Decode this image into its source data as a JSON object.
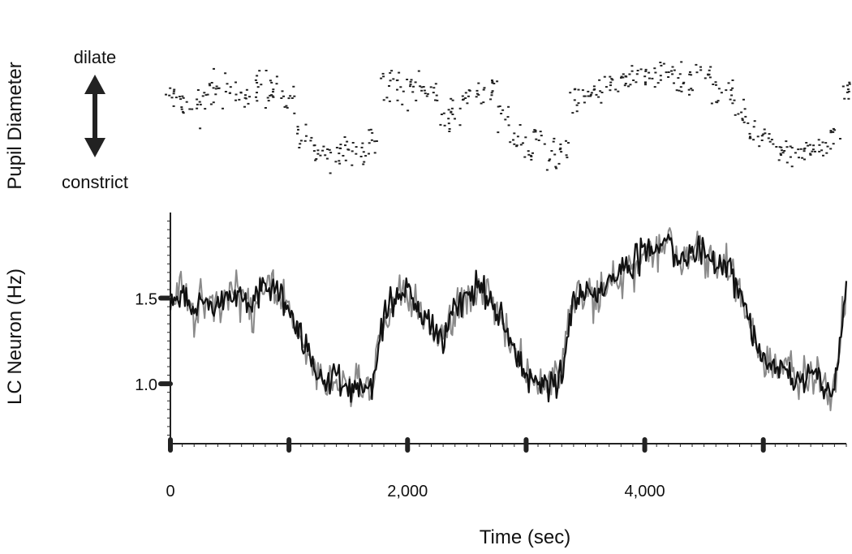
{
  "chart_data": [
    {
      "type": "scatter",
      "ylabel": "Pupil Diameter",
      "y_top_label": "dilate",
      "y_bottom_label": "constrict",
      "xlim": [
        0,
        5700
      ],
      "ylim": [
        0,
        1
      ],
      "colors": {
        "points": "#222222",
        "arrow": "#222222"
      },
      "series": [
        {
          "x": [
            0,
            100,
            200,
            300,
            400,
            500,
            600,
            700,
            800,
            900,
            1000,
            1100,
            1200,
            1300,
            1400,
            1500,
            1600,
            1700,
            1800,
            1900,
            2000,
            2100,
            2200,
            2300,
            2400,
            2500,
            2600,
            2700,
            2800,
            2900,
            3000,
            3100,
            3200,
            3300,
            3400,
            3500,
            3600,
            3700,
            3800,
            3900,
            4000,
            4100,
            4200,
            4300,
            4400,
            4500,
            4600,
            4700,
            4800,
            4900,
            5000,
            5100,
            5200,
            5300,
            5400,
            5500,
            5600,
            5700
          ],
          "values": [
            0.72,
            0.65,
            0.62,
            0.74,
            0.74,
            0.74,
            0.72,
            0.74,
            0.73,
            0.72,
            0.7,
            0.42,
            0.38,
            0.3,
            0.32,
            0.34,
            0.36,
            0.38,
            0.75,
            0.76,
            0.74,
            0.74,
            0.72,
            0.55,
            0.62,
            0.7,
            0.74,
            0.75,
            0.58,
            0.4,
            0.35,
            0.42,
            0.3,
            0.32,
            0.68,
            0.72,
            0.76,
            0.8,
            0.82,
            0.84,
            0.82,
            0.86,
            0.84,
            0.8,
            0.78,
            0.82,
            0.74,
            0.7,
            0.55,
            0.45,
            0.42,
            0.38,
            0.35,
            0.36,
            0.34,
            0.36,
            0.42,
            0.75
          ]
        }
      ]
    },
    {
      "type": "line",
      "ylabel": "LC Neuron (Hz)",
      "xlabel": "Time (sec)",
      "xlim": [
        0,
        5700
      ],
      "ylim": [
        0.65,
        2.0
      ],
      "x_ticks": [
        0,
        2000,
        4000
      ],
      "x_tick_labels": [
        "0",
        "2,000",
        "4,000"
      ],
      "y_ticks": [
        1.0,
        1.5
      ],
      "y_tick_labels": [
        "1.0",
        "1.5"
      ],
      "grid": false,
      "colors": {
        "line_dark": "#111111",
        "line_light": "#8a8a8a",
        "axis": "#222222"
      },
      "series": [
        {
          "x": [
            0,
            100,
            200,
            300,
            400,
            500,
            600,
            700,
            800,
            900,
            1000,
            1100,
            1200,
            1300,
            1400,
            1500,
            1600,
            1700,
            1800,
            1900,
            2000,
            2100,
            2200,
            2300,
            2400,
            2500,
            2600,
            2700,
            2800,
            2900,
            3000,
            3100,
            3200,
            3300,
            3400,
            3500,
            3600,
            3700,
            3800,
            3900,
            4000,
            4100,
            4200,
            4300,
            4400,
            4500,
            4600,
            4700,
            4800,
            4900,
            5000,
            5100,
            5200,
            5300,
            5400,
            5500,
            5600,
            5700
          ],
          "values": [
            1.45,
            1.55,
            1.4,
            1.5,
            1.45,
            1.55,
            1.5,
            1.45,
            1.6,
            1.55,
            1.45,
            1.3,
            1.1,
            1.0,
            1.05,
            0.95,
            1.0,
            0.95,
            1.4,
            1.5,
            1.55,
            1.45,
            1.35,
            1.25,
            1.45,
            1.5,
            1.55,
            1.5,
            1.35,
            1.2,
            1.05,
            1.0,
            1.0,
            1.05,
            1.5,
            1.55,
            1.5,
            1.6,
            1.65,
            1.7,
            1.8,
            1.75,
            1.85,
            1.7,
            1.75,
            1.8,
            1.65,
            1.7,
            1.55,
            1.3,
            1.15,
            1.1,
            1.05,
            1.0,
            1.05,
            1.0,
            0.95,
            1.6
          ]
        }
      ]
    }
  ]
}
